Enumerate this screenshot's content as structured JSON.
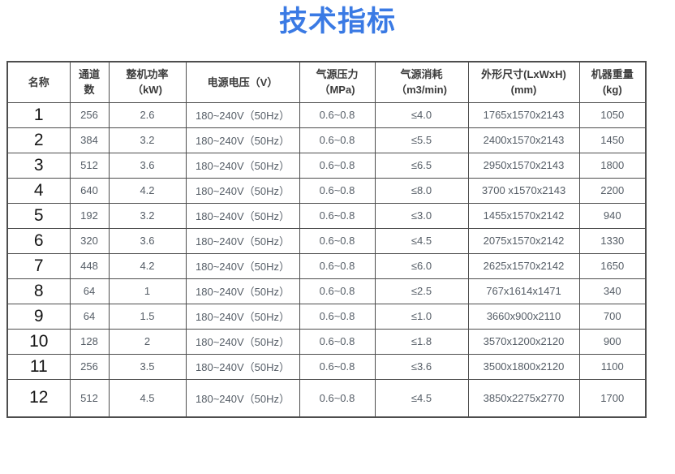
{
  "page": {
    "title": "技术指标",
    "title_color": "#3a7ae4",
    "border_color": "#4d4d4d"
  },
  "table": {
    "headers": [
      "名称",
      "通道\n数",
      "整机功率\n（kW)",
      "电源电压（V）",
      "气源压力\n（MPa)",
      "气源消耗\n（m3/min)",
      "外形尺寸(LxWxH)\n(mm)",
      "机器重量\n(kg)"
    ],
    "rows": [
      {
        "name": "1",
        "channels": "256",
        "power": "2.6",
        "voltage": "180~240V（50Hz）",
        "pressure": "0.6~0.8",
        "consumption": "≤4.0",
        "dimensions": "1765x1570x2143",
        "weight": "1050"
      },
      {
        "name": "2",
        "channels": "384",
        "power": "3.2",
        "voltage": "180~240V（50Hz）",
        "pressure": "0.6~0.8",
        "consumption": "≤5.5",
        "dimensions": "2400x1570x2143",
        "weight": "1450"
      },
      {
        "name": "3",
        "channels": "512",
        "power": "3.6",
        "voltage": "180~240V（50Hz）",
        "pressure": "0.6~0.8",
        "consumption": "≤6.5",
        "dimensions": "2950x1570x2143",
        "weight": "1800"
      },
      {
        "name": "4",
        "channels": "640",
        "power": "4.2",
        "voltage": "180~240V（50Hz）",
        "pressure": "0.6~0.8",
        "consumption": "≤8.0",
        "dimensions": "3700 x1570x2143",
        "weight": "2200"
      },
      {
        "name": "5",
        "channels": "192",
        "power": "3.2",
        "voltage": "180~240V（50Hz）",
        "pressure": "0.6~0.8",
        "consumption": "≤3.0",
        "dimensions": "1455x1570x2142",
        "weight": "940"
      },
      {
        "name": "6",
        "channels": "320",
        "power": "3.6",
        "voltage": "180~240V（50Hz）",
        "pressure": "0.6~0.8",
        "consumption": "≤4.5",
        "dimensions": "2075x1570x2142",
        "weight": "1330"
      },
      {
        "name": "7",
        "channels": "448",
        "power": "4.2",
        "voltage": "180~240V（50Hz）",
        "pressure": "0.6~0.8",
        "consumption": "≤6.0",
        "dimensions": "2625x1570x2142",
        "weight": "1650"
      },
      {
        "name": "8",
        "channels": "64",
        "power": "1",
        "voltage": "180~240V（50Hz）",
        "pressure": "0.6~0.8",
        "consumption": "≤2.5",
        "dimensions": "767x1614x1471",
        "weight": "340"
      },
      {
        "name": "9",
        "channels": "64",
        "power": "1.5",
        "voltage": "180~240V（50Hz）",
        "pressure": "0.6~0.8",
        "consumption": "≤1.0",
        "dimensions": "3660x900x2110",
        "weight": "700"
      },
      {
        "name": "10",
        "channels": "128",
        "power": "2",
        "voltage": "180~240V（50Hz）",
        "pressure": "0.6~0.8",
        "consumption": "≤1.8",
        "dimensions": "3570x1200x2120",
        "weight": "900"
      },
      {
        "name": "11",
        "channels": "256",
        "power": "3.5",
        "voltage": "180~240V（50Hz）",
        "pressure": "0.6~0.8",
        "consumption": "≤3.6",
        "dimensions": "3500x1800x2120",
        "weight": "1100"
      },
      {
        "name": "12",
        "channels": "512",
        "power": "4.5",
        "voltage": "180~240V（50Hz）",
        "pressure": "0.6~0.8",
        "consumption": "≤4.5",
        "dimensions": "3850x2275x2770",
        "weight": "1700"
      }
    ]
  }
}
